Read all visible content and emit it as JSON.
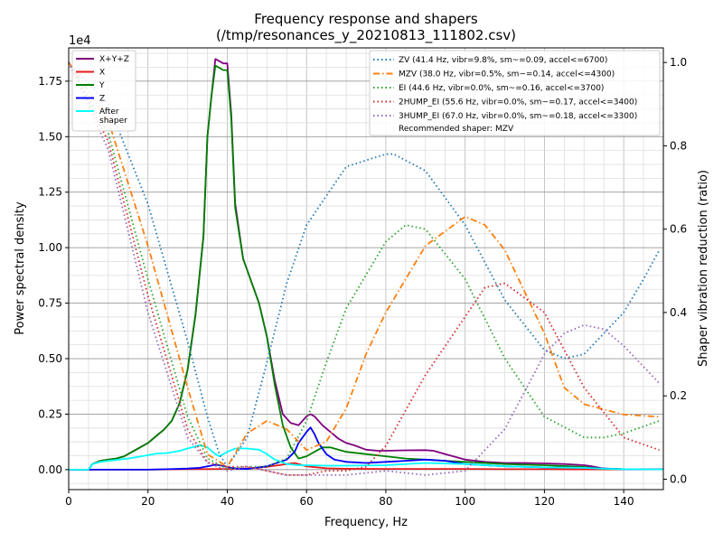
{
  "chart_data": {
    "type": "line",
    "title_lines": [
      "Frequency response and shapers",
      "(/tmp/resonances_y_20210813_111802.csv)"
    ],
    "xlabel": "Frequency, Hz",
    "ylabel": "Power spectral density",
    "y2label": "Shaper vibration reduction (ratio)",
    "y_offset_label": "1e4",
    "xlim": [
      0,
      150
    ],
    "ylim": [
      -0.09,
      1.9
    ],
    "y2lim": [
      -0.025,
      1.035
    ],
    "x_ticks": [
      0,
      20,
      40,
      60,
      80,
      100,
      120,
      140
    ],
    "y_ticks": [
      0.0,
      0.25,
      0.5,
      0.75,
      1.0,
      1.25,
      1.5,
      1.75
    ],
    "y_tick_labels": [
      "0.00",
      "0.25",
      "0.50",
      "0.75",
      "1.00",
      "1.25",
      "1.50",
      "1.75"
    ],
    "y2_ticks": [
      0.0,
      0.2,
      0.4,
      0.6,
      0.8,
      1.0
    ],
    "y2_tick_labels": [
      "0.0",
      "0.2",
      "0.4",
      "0.6",
      "0.8",
      "1.0"
    ],
    "grid": true,
    "legend_left_placement": "top-left",
    "legend_right_placement": "top-right",
    "psd_series": [
      {
        "name": "X+Y+Z",
        "color": "#800080",
        "style": "solid",
        "x": [
          0,
          5,
          6,
          8,
          10,
          12,
          14,
          16,
          18,
          20,
          22,
          24,
          26,
          28,
          30,
          32,
          34,
          35,
          36,
          37,
          38,
          39,
          40,
          41,
          42,
          44,
          46,
          48,
          50,
          52,
          54,
          56,
          58,
          60,
          61,
          62,
          64,
          66,
          68,
          70,
          72,
          75,
          78,
          80,
          85,
          90,
          92,
          95,
          100,
          105,
          110,
          115,
          120,
          125,
          130,
          132,
          135,
          140,
          145,
          150
        ],
        "y": [
          0,
          0,
          0.025,
          0.04,
          0.045,
          0.05,
          0.06,
          0.08,
          0.1,
          0.12,
          0.15,
          0.18,
          0.22,
          0.3,
          0.45,
          0.7,
          1.05,
          1.5,
          1.68,
          1.85,
          1.84,
          1.83,
          1.83,
          1.6,
          1.2,
          0.95,
          0.85,
          0.75,
          0.6,
          0.4,
          0.25,
          0.21,
          0.2,
          0.24,
          0.25,
          0.24,
          0.2,
          0.17,
          0.14,
          0.12,
          0.11,
          0.09,
          0.085,
          0.085,
          0.087,
          0.088,
          0.085,
          0.07,
          0.045,
          0.035,
          0.03,
          0.03,
          0.028,
          0.025,
          0.02,
          0.015,
          0.005,
          0.002,
          0.001,
          0.001
        ]
      },
      {
        "name": "X",
        "color": "#e41a1c",
        "style": "solid",
        "x": [
          0,
          10,
          20,
          30,
          40,
          45,
          50,
          55,
          57,
          60,
          65,
          70,
          80,
          90,
          100,
          110,
          120,
          130,
          140,
          150
        ],
        "y": [
          0,
          0,
          0,
          0.002,
          0.003,
          0.005,
          0.012,
          0.025,
          0.03,
          0.015,
          0.006,
          0.004,
          0.003,
          0.003,
          0.003,
          0.002,
          0.002,
          0.001,
          0.001,
          0.001
        ]
      },
      {
        "name": "Y",
        "color": "#008000",
        "style": "solid",
        "x": [
          0,
          5,
          6,
          8,
          10,
          12,
          14,
          16,
          18,
          20,
          22,
          24,
          26,
          28,
          30,
          32,
          34,
          35,
          36,
          37,
          38,
          39,
          40,
          41,
          42,
          44,
          46,
          48,
          50,
          52,
          54,
          56,
          58,
          60,
          62,
          64,
          66,
          68,
          70,
          75,
          80,
          85,
          90,
          95,
          100,
          110,
          120,
          130,
          135,
          140,
          150
        ],
        "y": [
          0,
          0,
          0.025,
          0.04,
          0.045,
          0.05,
          0.06,
          0.08,
          0.1,
          0.12,
          0.15,
          0.18,
          0.22,
          0.3,
          0.45,
          0.7,
          1.05,
          1.5,
          1.68,
          1.82,
          1.81,
          1.8,
          1.8,
          1.58,
          1.18,
          0.95,
          0.85,
          0.75,
          0.6,
          0.38,
          0.2,
          0.1,
          0.05,
          0.06,
          0.08,
          0.1,
          0.1,
          0.09,
          0.08,
          0.07,
          0.06,
          0.05,
          0.045,
          0.04,
          0.035,
          0.025,
          0.02,
          0.012,
          0.003,
          0.002,
          0.001
        ]
      },
      {
        "name": "Z",
        "color": "#0000ff",
        "style": "solid",
        "x": [
          0,
          10,
          20,
          25,
          30,
          33,
          35,
          37,
          38,
          40,
          42,
          45,
          50,
          55,
          57,
          58,
          60,
          61,
          62,
          63,
          65,
          67,
          70,
          75,
          80,
          85,
          90,
          95,
          100,
          110,
          120,
          130,
          135,
          140,
          150
        ],
        "y": [
          0,
          0,
          0,
          0.002,
          0.005,
          0.008,
          0.015,
          0.022,
          0.02,
          0.012,
          0.005,
          0.003,
          0.015,
          0.045,
          0.08,
          0.12,
          0.17,
          0.19,
          0.16,
          0.12,
          0.07,
          0.045,
          0.035,
          0.03,
          0.035,
          0.04,
          0.045,
          0.04,
          0.025,
          0.015,
          0.01,
          0.008,
          0.005,
          0.002,
          0.001
        ]
      },
      {
        "name": "After\nshaper",
        "color": "#00ffff",
        "style": "solid",
        "x": [
          0,
          5,
          6,
          8,
          10,
          15,
          20,
          22,
          25,
          28,
          30,
          33,
          35,
          37,
          38,
          40,
          42,
          45,
          48,
          50,
          52,
          55,
          58,
          60,
          65,
          70,
          80,
          90,
          100,
          110,
          120,
          130,
          135,
          140,
          150
        ],
        "y": [
          0,
          0,
          0.025,
          0.035,
          0.04,
          0.05,
          0.065,
          0.072,
          0.075,
          0.085,
          0.095,
          0.11,
          0.1,
          0.07,
          0.06,
          0.08,
          0.095,
          0.095,
          0.09,
          0.07,
          0.045,
          0.025,
          0.02,
          0.02,
          0.018,
          0.018,
          0.02,
          0.03,
          0.025,
          0.015,
          0.01,
          0.008,
          0.004,
          0.002,
          0.001
        ]
      }
    ],
    "shaper_series": [
      {
        "name": "ZV (41.4 Hz, vibr=9.8%, sm~=0.09, accel<=6700)",
        "color": "#1f77b4",
        "style": "dotted",
        "x": [
          0,
          10,
          20,
          30,
          35,
          38,
          40,
          45,
          50,
          55,
          60,
          70,
          80,
          82,
          90,
          100,
          110,
          120,
          125,
          130,
          140,
          145,
          149
        ],
        "y": [
          1.0,
          0.9,
          0.66,
          0.33,
          0.15,
          0.06,
          0.03,
          0.1,
          0.28,
          0.47,
          0.61,
          0.75,
          0.78,
          0.78,
          0.74,
          0.61,
          0.43,
          0.31,
          0.29,
          0.3,
          0.4,
          0.48,
          0.55
        ]
      },
      {
        "name": "MZV (38.0 Hz, vibr=0.5%, sm~=0.14, accel<=4300)",
        "color": "#ff7f0e",
        "style": "dashdot",
        "x": [
          0,
          10,
          20,
          30,
          35,
          40,
          45,
          50,
          55,
          60,
          65,
          70,
          75,
          80,
          90,
          100,
          105,
          110,
          120,
          125,
          130,
          140,
          149
        ],
        "y": [
          1.0,
          0.86,
          0.56,
          0.22,
          0.06,
          0.03,
          0.11,
          0.14,
          0.12,
          0.07,
          0.09,
          0.17,
          0.3,
          0.4,
          0.56,
          0.63,
          0.61,
          0.55,
          0.35,
          0.22,
          0.18,
          0.155,
          0.15
        ]
      },
      {
        "name": "EI (44.6 Hz, vibr=0.0%, sm~=0.16, accel<=3700)",
        "color": "#2ca02c",
        "style": "dotted",
        "x": [
          0,
          10,
          20,
          30,
          35,
          40,
          45,
          50,
          55,
          60,
          65,
          70,
          80,
          85,
          90,
          100,
          110,
          120,
          130,
          135,
          140,
          149
        ],
        "y": [
          1.0,
          0.83,
          0.48,
          0.15,
          0.05,
          0.025,
          0.03,
          0.03,
          0.05,
          0.14,
          0.28,
          0.41,
          0.57,
          0.61,
          0.6,
          0.48,
          0.29,
          0.15,
          0.1,
          0.1,
          0.11,
          0.14
        ]
      },
      {
        "name": "2HUMP_EI (55.6 Hz, vibr=0.0%, sm~=0.17, accel<=3400)",
        "color": "#d62728",
        "style": "dotted",
        "x": [
          0,
          10,
          20,
          30,
          35,
          40,
          45,
          50,
          55,
          60,
          65,
          70,
          75,
          80,
          90,
          100,
          105,
          110,
          120,
          130,
          140,
          149
        ],
        "y": [
          1.0,
          0.81,
          0.44,
          0.12,
          0.04,
          0.03,
          0.03,
          0.02,
          0.01,
          0.01,
          0.02,
          0.02,
          0.03,
          0.08,
          0.25,
          0.39,
          0.46,
          0.47,
          0.4,
          0.22,
          0.1,
          0.07
        ]
      },
      {
        "name": "3HUMP_EI (67.0 Hz, vibr=0.0%, sm~=0.18, accel<=3300)",
        "color": "#9467bd",
        "style": "dotted",
        "x": [
          0,
          10,
          20,
          30,
          35,
          40,
          45,
          50,
          55,
          60,
          65,
          70,
          80,
          90,
          100,
          110,
          120,
          125,
          130,
          135,
          140,
          149
        ],
        "y": [
          1.0,
          0.79,
          0.4,
          0.1,
          0.04,
          0.02,
          0.03,
          0.02,
          0.01,
          0.01,
          0.01,
          0.01,
          0.02,
          0.01,
          0.02,
          0.12,
          0.3,
          0.35,
          0.37,
          0.36,
          0.32,
          0.23
        ]
      }
    ],
    "recommended_text": "Recommended shaper: MZV"
  }
}
